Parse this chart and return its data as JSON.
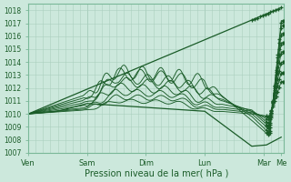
{
  "xlabel": "Pression niveau de la mer( hPa )",
  "bg_color": "#cce8dc",
  "grid_major_color": "#aacfbe",
  "grid_minor_color": "#bbdccc",
  "line_color": "#1a5c28",
  "ylim": [
    1007,
    1018.5
  ],
  "xlim": [
    0,
    4.35
  ],
  "yticks": [
    1007,
    1008,
    1009,
    1010,
    1011,
    1012,
    1013,
    1014,
    1015,
    1016,
    1017,
    1018
  ],
  "xtick_labels": [
    "Ven",
    "Sam",
    "Dim",
    "Lun",
    "Mar",
    "Me"
  ],
  "xtick_positions": [
    0,
    1,
    2,
    3,
    4,
    4.3
  ],
  "num_days": 4.35,
  "ensemble_lines": [
    {
      "waypoints_t": [
        0,
        1.0,
        1.5,
        2.5,
        3.0,
        3.8,
        4.1,
        4.3
      ],
      "waypoints_v": [
        1010.0,
        1011.5,
        1013.3,
        1013.0,
        1012.5,
        1009.5,
        1008.3,
        1017.2
      ],
      "noise_amp": 0.5,
      "noise_freq": 20
    },
    {
      "waypoints_t": [
        0,
        1.0,
        1.5,
        2.5,
        3.0,
        3.8,
        4.1,
        4.3
      ],
      "waypoints_v": [
        1010.0,
        1011.3,
        1013.1,
        1012.8,
        1012.2,
        1009.8,
        1008.5,
        1016.8
      ],
      "noise_amp": 0.45,
      "noise_freq": 18
    },
    {
      "waypoints_t": [
        0,
        1.0,
        1.5,
        2.5,
        3.0,
        3.8,
        4.1,
        4.3
      ],
      "waypoints_v": [
        1010.0,
        1011.1,
        1012.8,
        1012.5,
        1011.8,
        1010.0,
        1008.8,
        1016.2
      ],
      "noise_amp": 0.4,
      "noise_freq": 18
    },
    {
      "waypoints_t": [
        0,
        1.0,
        1.5,
        2.5,
        3.0,
        3.8,
        4.1,
        4.3
      ],
      "waypoints_v": [
        1010.0,
        1010.9,
        1012.5,
        1012.2,
        1011.5,
        1010.2,
        1009.0,
        1015.5
      ],
      "noise_amp": 0.35,
      "noise_freq": 17
    },
    {
      "waypoints_t": [
        0,
        1.0,
        1.5,
        2.5,
        3.0,
        3.8,
        4.1,
        4.3
      ],
      "waypoints_v": [
        1010.0,
        1010.7,
        1012.1,
        1011.8,
        1011.0,
        1010.3,
        1009.2,
        1014.8
      ],
      "noise_amp": 0.3,
      "noise_freq": 17
    },
    {
      "waypoints_t": [
        0,
        1.0,
        1.5,
        2.5,
        3.0,
        3.8,
        4.1,
        4.3
      ],
      "waypoints_v": [
        1010.0,
        1010.5,
        1011.7,
        1011.5,
        1010.7,
        1010.2,
        1009.5,
        1014.0
      ],
      "noise_amp": 0.25,
      "noise_freq": 16
    },
    {
      "waypoints_t": [
        0,
        1.0,
        1.5,
        2.5,
        3.0,
        3.8,
        4.1,
        4.3
      ],
      "waypoints_v": [
        1010.0,
        1010.4,
        1011.3,
        1011.2,
        1010.5,
        1010.1,
        1009.7,
        1013.2
      ],
      "noise_amp": 0.2,
      "noise_freq": 16
    },
    {
      "waypoints_t": [
        0,
        1.0,
        1.5,
        2.5,
        3.0,
        3.8,
        4.1,
        4.3
      ],
      "waypoints_v": [
        1010.0,
        1010.3,
        1011.0,
        1010.9,
        1010.3,
        1010.0,
        1009.8,
        1012.5
      ],
      "noise_amp": 0.15,
      "noise_freq": 15
    }
  ],
  "upper_line": {
    "t": [
      0,
      4.3
    ],
    "v": [
      1010.0,
      1018.2
    ]
  },
  "lower_line": {
    "t": [
      0,
      0.5,
      1.0,
      2.0,
      3.0,
      3.8,
      4.05,
      4.3
    ],
    "v": [
      1010.0,
      1010.2,
      1010.8,
      1010.5,
      1010.2,
      1007.5,
      1007.6,
      1008.2
    ]
  }
}
